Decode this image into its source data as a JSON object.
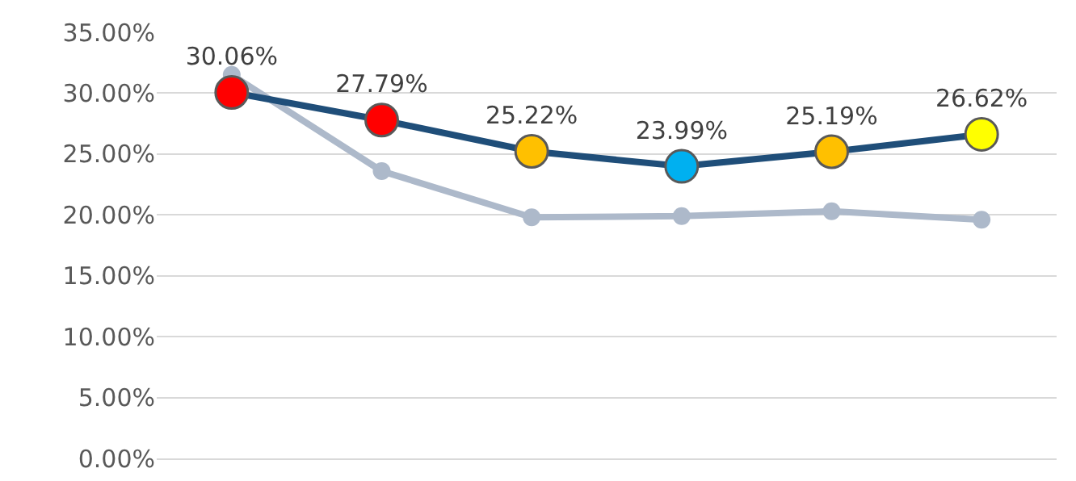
{
  "chart_data": {
    "type": "line",
    "categories": [
      null,
      null,
      null,
      null,
      null,
      null
    ],
    "series": [
      {
        "name": null,
        "color": "#adb9ca",
        "values": [
          31.5,
          23.6,
          19.8,
          19.9,
          20.3,
          19.6
        ]
      },
      {
        "name": null,
        "color": "#1f4e79",
        "colors": [
          "#ff0000",
          "#ff0000",
          "#ffc000",
          "#00b0f0",
          "#ffc000",
          "#ffff00"
        ],
        "values": [
          30.06,
          27.79,
          25.22,
          23.99,
          25.19,
          26.62
        ],
        "value_labels": [
          "30.06%",
          "27.79%",
          "25.22%",
          "23.99%",
          "25.19%",
          "26.62%"
        ]
      }
    ],
    "ylim": [
      0,
      35
    ],
    "yticks": [
      {
        "value": 0,
        "label": "0.00%"
      },
      {
        "value": 5,
        "label": "5.00%"
      },
      {
        "value": 10,
        "label": "10.00%"
      },
      {
        "value": 15,
        "label": "15.00%"
      },
      {
        "value": 20,
        "label": "20.00%"
      },
      {
        "value": 25,
        "label": "25.00%"
      },
      {
        "value": 30,
        "label": "30.00%"
      },
      {
        "value": 35,
        "label": "35.00%"
      }
    ],
    "grid": "y",
    "marker": "circle",
    "line_style": "solid"
  }
}
